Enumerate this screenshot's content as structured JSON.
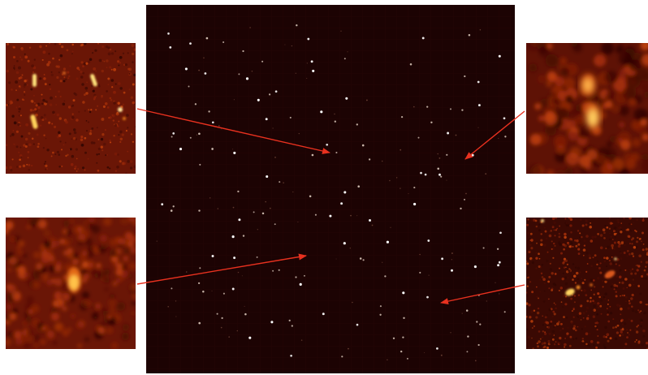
{
  "colors": {
    "background": "#ffffff",
    "field_background": "#1c0303",
    "source_hot": "#ffe27a",
    "source_warm": "#e06a10",
    "noise": "#5a1208",
    "arrow": "#e8311f"
  },
  "panels": [
    {
      "name": "main-field-panel",
      "description_visible": false
    },
    {
      "name": "inset-top-left",
      "description_visible": false
    },
    {
      "name": "inset-bottom-left",
      "description_visible": false
    },
    {
      "name": "inset-top-right",
      "description_visible": false
    },
    {
      "name": "inset-bottom-right",
      "description_visible": false
    }
  ]
}
